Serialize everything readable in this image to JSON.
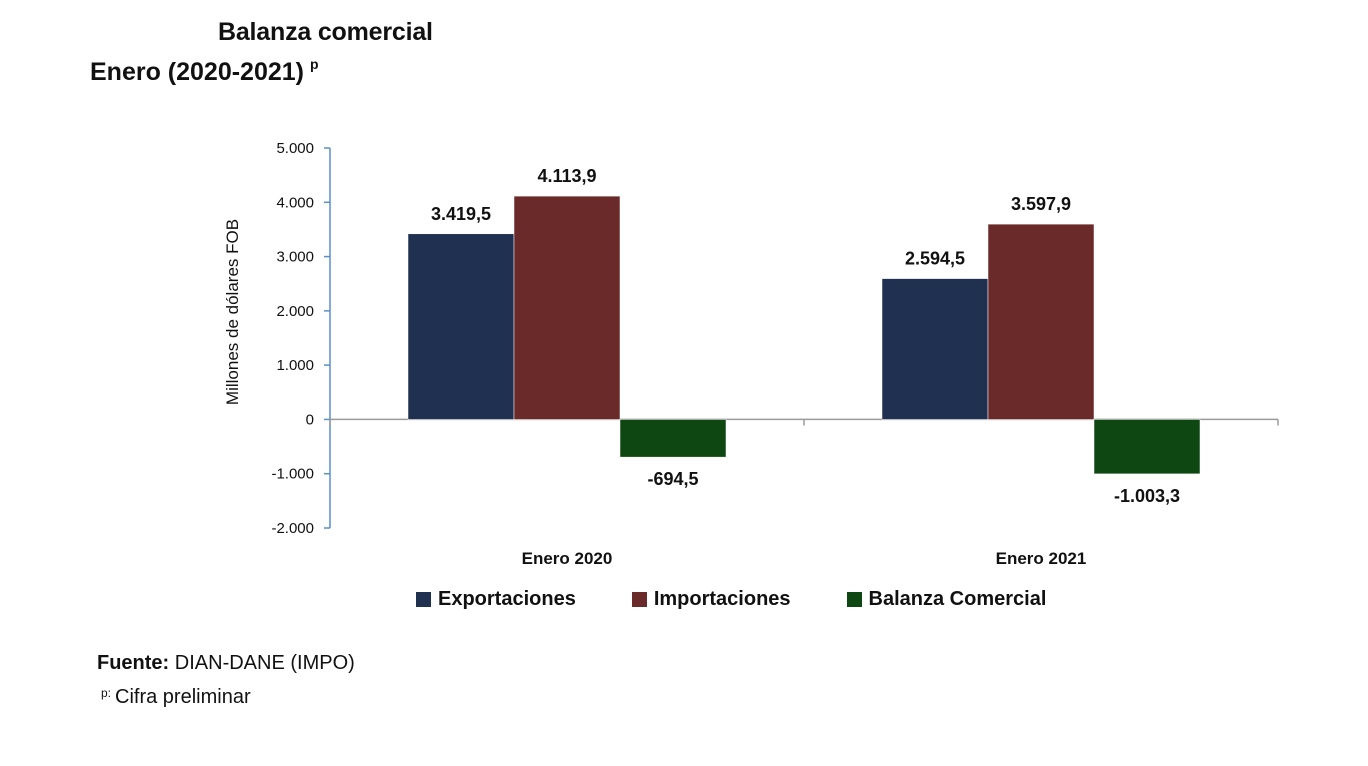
{
  "chart_data": {
    "type": "bar",
    "title": "Balanza comercial",
    "subtitle": "Enero  (2020-2021)",
    "subtitle_mark": "p",
    "ylabel": "Millones de dólares FOB",
    "xlabel": "",
    "ylim": [
      -2000,
      5000
    ],
    "yticks": [
      -2000,
      -1000,
      0,
      1000,
      2000,
      3000,
      4000,
      5000
    ],
    "ytick_labels": [
      "-2.000",
      "-1.000",
      "0",
      "1.000",
      "2.000",
      "3.000",
      "4.000",
      "5.000"
    ],
    "categories": [
      "Enero 2020",
      "Enero 2021"
    ],
    "series": [
      {
        "name": "Exportaciones",
        "color": "#1f3050",
        "values": [
          3419.5,
          2594.5
        ],
        "labels": [
          "3.419,5",
          "2.594,5"
        ]
      },
      {
        "name": "Importaciones",
        "color": "#6b2a2a",
        "values": [
          4113.9,
          3597.9
        ],
        "labels": [
          "4.113,9",
          "3.597,9"
        ]
      },
      {
        "name": "Balanza Comercial",
        "color": "#0f4712",
        "values": [
          -694.5,
          -1003.3
        ],
        "labels": [
          "-694,5",
          "-1.003,3"
        ]
      }
    ],
    "legend": "bottom"
  },
  "footer": {
    "source_label": "Fuente:",
    "source_text": "DIAN-DANE (IMPO)",
    "note_mark": "p:",
    "note_text": "Cifra preliminar"
  }
}
